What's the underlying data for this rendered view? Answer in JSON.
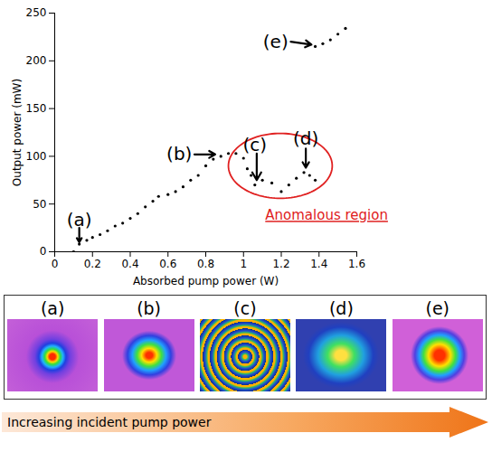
{
  "chart_data": {
    "type": "scatter",
    "x_label": "Absorbed pump power (W)",
    "y_label": "Output power (mW)",
    "xlim": [
      0,
      1.6
    ],
    "xticks": [
      0,
      0.2,
      0.4,
      0.6,
      0.8,
      1,
      1.2,
      1.4,
      1.6
    ],
    "ylim": [
      0,
      250
    ],
    "yticks": [
      0,
      50,
      100,
      150,
      200,
      250
    ],
    "color": "#000000",
    "marker": "dot",
    "x": [
      0.1,
      0.13,
      0.17,
      0.2,
      0.24,
      0.28,
      0.32,
      0.36,
      0.4,
      0.44,
      0.48,
      0.52,
      0.55,
      0.6,
      0.64,
      0.68,
      0.72,
      0.76,
      0.8,
      0.84,
      0.88,
      0.92,
      0.96,
      1.0,
      1.02,
      1.04,
      1.06,
      1.1,
      1.15,
      1.2,
      1.24,
      1.28,
      1.32,
      1.35,
      1.38,
      1.38,
      1.42,
      1.46,
      1.5,
      1.54
    ],
    "values": [
      0,
      8,
      12,
      15,
      18,
      22,
      27,
      30,
      35,
      40,
      47,
      53,
      58,
      60,
      63,
      68,
      75,
      80,
      90,
      97,
      100,
      103,
      103,
      98,
      87,
      80,
      70,
      75,
      72,
      63,
      70,
      77,
      83,
      80,
      75,
      215,
      218,
      222,
      228,
      234
    ],
    "annotations": [
      {
        "text": "(a)",
        "x": 0.13,
        "y": 33,
        "arrow_from": [
          0.13,
          25
        ],
        "arrow_to": [
          0.13,
          10
        ]
      },
      {
        "text": "(b)",
        "x": 0.66,
        "y": 102,
        "arrow_from": [
          0.74,
          102
        ],
        "arrow_to": [
          0.85,
          102
        ]
      },
      {
        "text": "(c)",
        "x": 1.06,
        "y": 112,
        "arrow_from": [
          1.07,
          103
        ],
        "arrow_to": [
          1.07,
          75
        ]
      },
      {
        "text": "(d)",
        "x": 1.33,
        "y": 118,
        "arrow_from": [
          1.33,
          108
        ],
        "arrow_to": [
          1.33,
          88
        ]
      },
      {
        "text": "(e)",
        "x": 1.17,
        "y": 220,
        "arrow_from": [
          1.25,
          220
        ],
        "arrow_to": [
          1.36,
          217
        ]
      }
    ],
    "region": {
      "label": "Anomalous region",
      "color": "#e02020",
      "xlim": [
        0.92,
        1.47
      ],
      "ylim": [
        56,
        124
      ],
      "label_x": 1.44,
      "label_y": 38
    }
  },
  "beam_profiles": {
    "labels": [
      "(a)",
      "(b)",
      "(c)",
      "(d)",
      "(e)"
    ]
  },
  "arrow_text": "Increasing incident pump power"
}
